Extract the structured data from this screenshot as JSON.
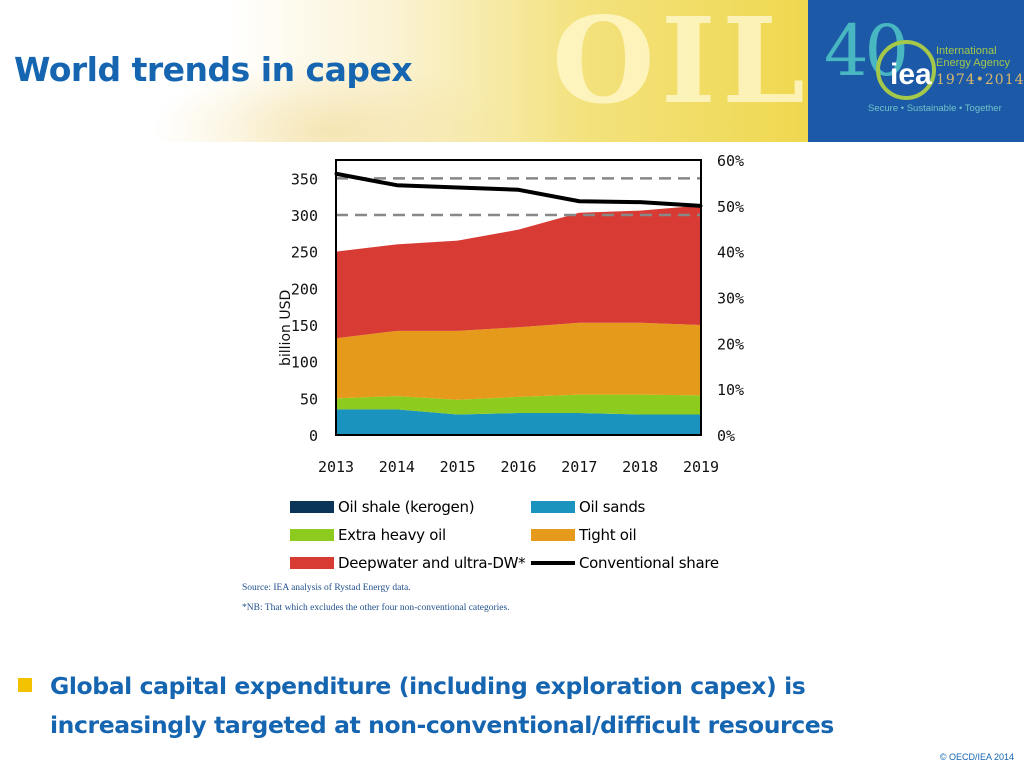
{
  "page": {
    "title": "World trends in capex",
    "banner_word": "OIL",
    "bullet": "Global capital expenditure (including exploration capex) is increasingly targeted at non-conventional/difficult resources",
    "copyright": "© OECD/IEA 2014"
  },
  "logo": {
    "number": "40",
    "acronym": "iea",
    "name_line1": "International",
    "name_line2": "Energy Agency",
    "years": "1974•2014",
    "tagline": "Secure • Sustainable • Together"
  },
  "colors": {
    "title": "#1565b0",
    "logo_bg": "#1c5aa7",
    "bullet_marker": "#f2c200"
  },
  "chart_data": {
    "type": "area",
    "stacked": true,
    "x": [
      "2013",
      "2014",
      "2015",
      "2016",
      "2017",
      "2018",
      "2019"
    ],
    "ylabel": "billion USD",
    "ylim": [
      0,
      375
    ],
    "yticks": [
      0,
      50,
      100,
      150,
      200,
      250,
      300,
      350
    ],
    "y2lim": [
      0,
      0.6
    ],
    "y2ticks": [
      "0%",
      "10%",
      "20%",
      "30%",
      "40%",
      "50%",
      "60%"
    ],
    "reference_lines": [
      300,
      350
    ],
    "series": [
      {
        "name": "Oil shale (kerogen)",
        "color": "#0b3558",
        "values": [
          0,
          0,
          0,
          0,
          0,
          0,
          0
        ]
      },
      {
        "name": "Oil sands",
        "color": "#1a93be",
        "values": [
          35,
          35,
          28,
          30,
          30,
          28,
          28
        ]
      },
      {
        "name": "Extra heavy oil",
        "color": "#8dcc1e",
        "values": [
          15,
          18,
          20,
          22,
          25,
          27,
          26
        ]
      },
      {
        "name": "Tight oil",
        "color": "#e59a1b",
        "values": [
          82,
          89,
          94,
          95,
          98,
          98,
          96
        ]
      },
      {
        "name": "Deepwater and ultra-DW*",
        "color": "#d83a34",
        "values": [
          118,
          118,
          123,
          133,
          150,
          153,
          163
        ]
      }
    ],
    "line_series": {
      "name": "Conventional share",
      "color": "#000000",
      "axis": "right",
      "values": [
        0.57,
        0.545,
        0.54,
        0.535,
        0.51,
        0.508,
        0.5
      ]
    },
    "source": "Source: IEA analysis of Rystad Energy data.",
    "note": "*NB: That which excludes the other four non-conventional categories."
  }
}
